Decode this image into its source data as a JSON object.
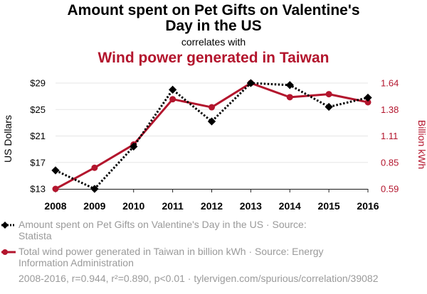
{
  "titles": {
    "line1": "Amount spent on Pet Gifts on Valentine's",
    "line2": "Day in the US",
    "correlates": "correlates with",
    "line3": "Wind power generated in Taiwan"
  },
  "colors": {
    "series1": "#000000",
    "series2": "#b3152d",
    "legend_text": "#9a9a9a"
  },
  "chart_data": {
    "type": "line",
    "x": [
      2008,
      2009,
      2010,
      2011,
      2012,
      2013,
      2014,
      2015,
      2016
    ],
    "x_tick_labels": [
      "2008",
      "2009",
      "2010",
      "2011",
      "2012",
      "2013",
      "2014",
      "2015",
      "2016"
    ],
    "ylabel_left": "US Dollars",
    "ylabel_right": "Billion kWh",
    "ylim_left": [
      13,
      29
    ],
    "ylim_right": [
      0.59,
      1.64
    ],
    "left_tick_labels": [
      "$13",
      "$17",
      "$21",
      "$25",
      "$29"
    ],
    "right_tick_labels": [
      "0.59",
      "0.85",
      "1.11",
      "1.38",
      "1.64"
    ],
    "grid": true,
    "series": [
      {
        "name": "Amount spent on Pet Gifts on Valentine's Day in the US · Source: Statista",
        "axis": "left",
        "style": "dotted",
        "marker": "diamond",
        "values": [
          15.8,
          13.0,
          19.4,
          28.0,
          23.2,
          29.0,
          28.7,
          25.4,
          26.8
        ]
      },
      {
        "name": "Total wind power generated in Taiwan in billion kWh · Source: Energy Information Administration",
        "axis": "right",
        "style": "solid",
        "marker": "circle",
        "values": [
          0.59,
          0.8,
          1.03,
          1.48,
          1.4,
          1.64,
          1.5,
          1.53,
          1.45
        ]
      }
    ]
  },
  "footer": "2008-2016, r=0.944, r²=0.890, p<0.01 · tylervigen.com/spurious/correlation/39082"
}
